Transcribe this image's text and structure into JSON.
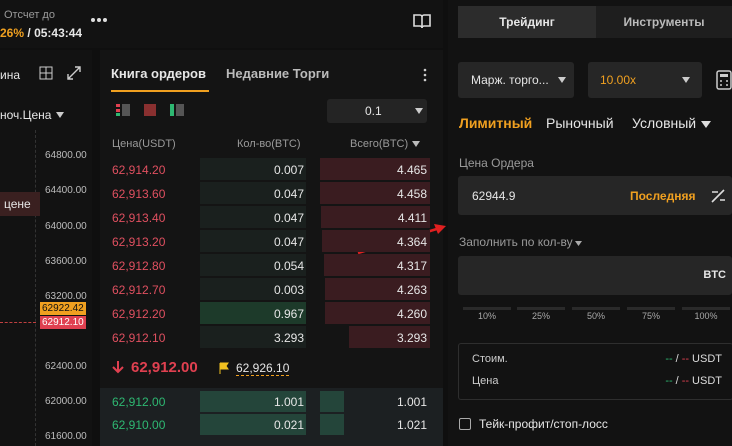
{
  "header": {
    "countdown_label": "Отсчет до",
    "percent": "26%",
    "separator": "/",
    "countdown": "05:43:44"
  },
  "chart": {
    "interval": "ина",
    "price_type": "ноч.Цена",
    "tooltip": "цене",
    "axis_labels": [
      "64800.00",
      "64400.00",
      "64000.00",
      "63600.00",
      "63200.00",
      "62400.00",
      "62000.00",
      "61600.00"
    ],
    "last_price": "62922.42",
    "mark_price": "62912.10"
  },
  "order_book": {
    "tabs": [
      "Книга ордеров",
      "Недавние Торги"
    ],
    "precision": "0.1",
    "columns": [
      "Цена(USDT)",
      "Кол-во(BTC)",
      "Всего(BTC)"
    ],
    "asks": [
      [
        "62,914.20",
        "0.007",
        "4.465"
      ],
      [
        "62,913.60",
        "0.047",
        "4.458"
      ],
      [
        "62,913.40",
        "0.047",
        "4.411"
      ],
      [
        "62,913.20",
        "0.047",
        "4.364"
      ],
      [
        "62,912.80",
        "0.054",
        "4.317"
      ],
      [
        "62,912.70",
        "0.003",
        "4.263"
      ],
      [
        "62,912.20",
        "0.967",
        "4.260"
      ],
      [
        "62,912.10",
        "3.293",
        "3.293"
      ]
    ],
    "last_price": "62,912.00",
    "mark_price": "62,926.10",
    "bids": [
      [
        "62,912.00",
        "1.001",
        "1.001"
      ],
      [
        "62,910.00",
        "0.021",
        "1.021"
      ]
    ]
  },
  "trade_panel": {
    "tabs": [
      "Трейдинг",
      "Инструменты"
    ],
    "margin_mode": "Марж. торго...",
    "leverage": "10.00x",
    "order_types": [
      "Лимитный",
      "Рыночный",
      "Условный"
    ],
    "price_label": "Цена Ордера",
    "price_value": "62944.9",
    "last_button": "Последняя",
    "quantity_label": "Заполнить по кол-ву",
    "quantity_unit": "BTC",
    "percentages": [
      "10%",
      "25%",
      "50%",
      "75%",
      "100%"
    ],
    "summary": [
      {
        "label": "Стоим.",
        "buy": "--",
        "sep": "/",
        "sell": "--",
        "unit": "USDT"
      },
      {
        "label": "Цена",
        "buy": "--",
        "sep": "/",
        "sell": "--",
        "unit": "USDT"
      }
    ],
    "tp_sl": "Тейк-профит/стоп-лосс"
  }
}
